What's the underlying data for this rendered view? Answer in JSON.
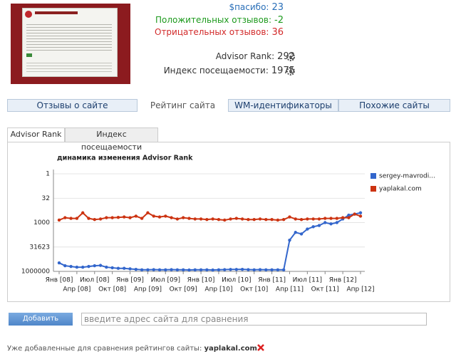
{
  "stats": [
    {
      "label": "$пасибо:",
      "value": 23
    },
    {
      "label": "Положительных отзывов:",
      "value": -2
    },
    {
      "label": "Отрицательных отзывов:",
      "value": 36
    },
    {
      "label": "Advisor Rank:",
      "value": 292
    },
    {
      "label": "Индекс посещаемости:",
      "value": 1975
    }
  ],
  "tabs": [
    "Отзывы о сайте",
    "Рейтинг сайта",
    "WM-идентификаторы",
    "Похожие сайты"
  ],
  "subtabs": [
    "Advisor Rank",
    "Индекс посещаемости"
  ],
  "chart_data": {
    "type": "line",
    "title": "динамика изменения Advisor Rank",
    "categories": [
      "Янв [08]",
      null,
      null,
      "Апр [08]",
      null,
      null,
      "Июл [08]",
      null,
      null,
      "Окт [08]",
      null,
      null,
      "Янв [09]",
      null,
      null,
      "Апр [09]",
      null,
      null,
      "Июл [09]",
      null,
      null,
      "Окт [09]",
      null,
      null,
      "Янв [10]",
      null,
      null,
      "Апр [10]",
      null,
      null,
      "Июл [10]",
      null,
      null,
      "Окт [10]",
      null,
      null,
      "Янв [11]",
      null,
      null,
      "Апр [11]",
      null,
      null,
      "Июл [11]",
      null,
      null,
      "Окт [11]",
      null,
      null,
      "Янв [12]",
      null,
      null,
      "Апр [12]"
    ],
    "series": [
      {
        "name": "sergey-mavrodi...",
        "color": "#3366cc",
        "values": [
          300000,
          450000,
          500000,
          550000,
          550000,
          500000,
          450000,
          430000,
          550000,
          600000,
          650000,
          650000,
          700000,
          750000,
          800000,
          800000,
          780000,
          800000,
          800000,
          780000,
          800000,
          800000,
          820000,
          800000,
          800000,
          800000,
          820000,
          800000,
          780000,
          760000,
          760000,
          750000,
          780000,
          800000,
          780000,
          800000,
          800000,
          800000,
          800000,
          12000,
          4000,
          5000,
          2500,
          1800,
          1500,
          1000,
          1200,
          1000,
          600,
          350,
          300,
          250
        ]
      },
      {
        "name": "yaplakal.com",
        "color": "#cc3311",
        "values": [
          700,
          500,
          550,
          550,
          250,
          550,
          650,
          600,
          500,
          500,
          480,
          450,
          500,
          400,
          550,
          250,
          400,
          450,
          400,
          500,
          600,
          500,
          550,
          600,
          600,
          650,
          600,
          650,
          700,
          600,
          550,
          600,
          650,
          650,
          600,
          650,
          650,
          700,
          650,
          450,
          600,
          650,
          600,
          600,
          600,
          550,
          550,
          550,
          500,
          500,
          300,
          400
        ]
      }
    ],
    "ylim": [
      1000000,
      1
    ],
    "yticks": [
      1,
      32,
      1000,
      31623,
      1000000
    ],
    "log_scale": true,
    "grid": true
  },
  "compare": {
    "button": "Добавить",
    "placeholder": "введите адрес сайта для сравнения",
    "added_label": "Уже добавленные для сравнения рейтингов сайты:",
    "added_sites": [
      "yaplakal.com"
    ]
  }
}
